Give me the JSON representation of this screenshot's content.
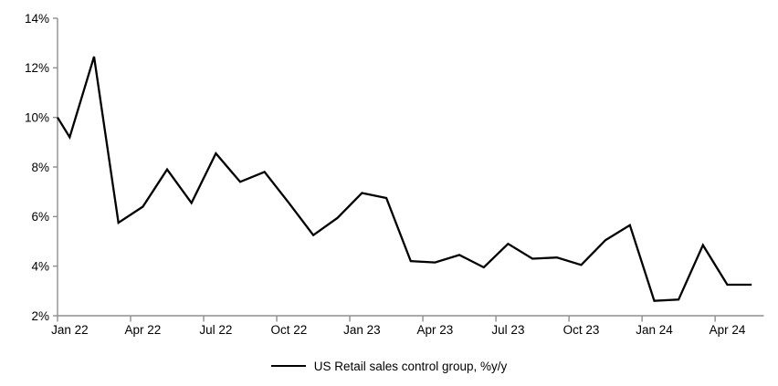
{
  "chart_data": {
    "type": "line",
    "title": "",
    "legend_label": "US Retail sales control group, %y/y",
    "legend_position": "bottom-center",
    "line_color": "#000000",
    "axis_color": "#8f8f8f",
    "grid": false,
    "ylim": [
      2,
      14
    ],
    "ytick_step": 2,
    "ytick_suffix": "%",
    "xtick_labels": [
      "Jan 22",
      "Apr 22",
      "Jul 22",
      "Oct 22",
      "Jan 23",
      "Apr 23",
      "Jul 23",
      "Oct 23",
      "Jan 24",
      "Apr 24"
    ],
    "xtick_interval_months": 3,
    "axis_start_value": 10.0,
    "x": [
      "Jan 22",
      "Feb 22",
      "Mar 22",
      "Apr 22",
      "May 22",
      "Jun 22",
      "Jul 22",
      "Aug 22",
      "Sep 22",
      "Oct 22",
      "Nov 22",
      "Dec 22",
      "Jan 23",
      "Feb 23",
      "Mar 23",
      "Apr 23",
      "May 23",
      "Jun 23",
      "Jul 23",
      "Aug 23",
      "Sep 23",
      "Oct 23",
      "Nov 23",
      "Dec 23",
      "Jan 24",
      "Feb 24",
      "Mar 24",
      "Apr 24",
      "May 24"
    ],
    "series": [
      {
        "name": "US Retail sales control group, %y/y",
        "values": [
          9.2,
          12.45,
          5.75,
          6.4,
          7.9,
          6.55,
          8.55,
          7.4,
          7.8,
          6.55,
          5.25,
          5.95,
          6.95,
          6.75,
          4.2,
          4.15,
          4.45,
          3.95,
          4.9,
          4.3,
          4.35,
          4.05,
          5.05,
          5.65,
          2.6,
          2.65,
          4.85,
          3.25,
          3.25
        ]
      }
    ]
  }
}
